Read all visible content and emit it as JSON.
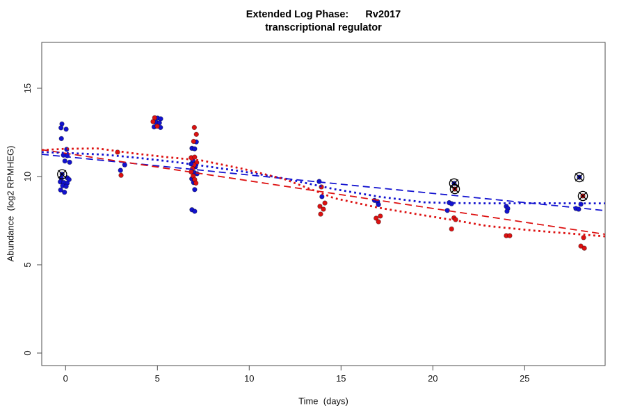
{
  "chart_data": {
    "type": "scatter",
    "title_line1": "Extended Log Phase:      Rv2017",
    "title_line2": "transcriptional regulator",
    "xlabel": "Time  (days)",
    "ylabel": "Abundance  (log2 RPMHEG)",
    "x_ticks": [
      0,
      5,
      10,
      15,
      20,
      25
    ],
    "y_ticks": [
      0,
      5,
      10,
      15
    ],
    "xlim": [
      -1.3,
      29.4
    ],
    "ylim": [
      -0.7,
      17.6
    ],
    "grid": false,
    "legend": "none",
    "colors": {
      "red": "#dd1111",
      "blue": "#1212cf",
      "axis": "#4d4d4d",
      "marker_ring": "#000000"
    },
    "series": [
      {
        "name": "blue-points",
        "color": "#1212cf",
        "points": [
          [
            -0.2,
            12.98
          ],
          [
            -0.25,
            12.76
          ],
          [
            0.03,
            12.68
          ],
          [
            -0.23,
            12.15
          ],
          [
            0.06,
            11.54
          ],
          [
            -0.12,
            11.21
          ],
          [
            0.09,
            11.18
          ],
          [
            -0.04,
            10.88
          ],
          [
            0.22,
            10.81
          ],
          [
            -0.19,
            10.13,
            1
          ],
          [
            0.09,
            9.93
          ],
          [
            -0.23,
            9.89
          ],
          [
            0.19,
            9.83
          ],
          [
            -0.29,
            9.7
          ],
          [
            -0.1,
            9.66
          ],
          [
            0.09,
            9.63
          ],
          [
            -0.16,
            9.48
          ],
          [
            0.03,
            9.44
          ],
          [
            -0.27,
            9.24
          ],
          [
            -0.06,
            9.11
          ],
          [
            3.22,
            10.66
          ],
          [
            2.99,
            10.35
          ],
          [
            5.01,
            13.31
          ],
          [
            5.18,
            13.27
          ],
          [
            4.92,
            13.07
          ],
          [
            5.11,
            13.04
          ],
          [
            4.82,
            12.81
          ],
          [
            5.17,
            12.78
          ],
          [
            7.12,
            11.96
          ],
          [
            6.88,
            11.6
          ],
          [
            7.03,
            11.57
          ],
          [
            6.93,
            10.88
          ],
          [
            6.84,
            10.71
          ],
          [
            7.07,
            10.55
          ],
          [
            7.01,
            10.22
          ],
          [
            7.16,
            10.16
          ],
          [
            6.87,
            9.87
          ],
          [
            6.97,
            9.66
          ],
          [
            7.03,
            9.26
          ],
          [
            6.88,
            8.12
          ],
          [
            7.03,
            8.03
          ],
          [
            13.81,
            9.72
          ],
          [
            13.96,
            8.86
          ],
          [
            16.82,
            8.65
          ],
          [
            16.99,
            8.58
          ],
          [
            17.04,
            8.41
          ],
          [
            21.16,
            9.61,
            1
          ],
          [
            20.89,
            8.52
          ],
          [
            21.02,
            8.46
          ],
          [
            20.79,
            8.08
          ],
          [
            24.0,
            8.31
          ],
          [
            24.08,
            8.19
          ],
          [
            24.04,
            8.03
          ],
          [
            27.98,
            9.96,
            1
          ],
          [
            28.06,
            8.43
          ],
          [
            27.79,
            8.19
          ],
          [
            27.94,
            8.15
          ]
        ]
      },
      {
        "name": "red-points",
        "color": "#dd1111",
        "points": [
          [
            2.83,
            11.38
          ],
          [
            3.02,
            10.07
          ],
          [
            4.85,
            13.33
          ],
          [
            4.76,
            13.11
          ],
          [
            4.99,
            12.85
          ],
          [
            7.01,
            12.78
          ],
          [
            7.12,
            12.39
          ],
          [
            6.97,
            11.99
          ],
          [
            6.84,
            11.07
          ],
          [
            7.03,
            11.1
          ],
          [
            7.14,
            10.79
          ],
          [
            7.0,
            10.66
          ],
          [
            6.91,
            10.45
          ],
          [
            6.84,
            10.26
          ],
          [
            6.95,
            10.03
          ],
          [
            7.03,
            9.83
          ],
          [
            7.1,
            9.63
          ],
          [
            13.93,
            9.41
          ],
          [
            14.12,
            8.5
          ],
          [
            13.85,
            8.31
          ],
          [
            14.04,
            8.15
          ],
          [
            13.89,
            7.87
          ],
          [
            17.14,
            7.76
          ],
          [
            16.91,
            7.64
          ],
          [
            17.04,
            7.44
          ],
          [
            21.2,
            9.29,
            1
          ],
          [
            21.15,
            7.66
          ],
          [
            21.24,
            7.56
          ],
          [
            21.02,
            7.03
          ],
          [
            24.0,
            6.65
          ],
          [
            24.19,
            6.65
          ],
          [
            28.17,
            8.9,
            1
          ],
          [
            28.21,
            6.54
          ],
          [
            28.06,
            6.06
          ],
          [
            28.25,
            5.94
          ]
        ]
      }
    ],
    "lines": [
      {
        "name": "blue-linear-fit",
        "color": "#1212cf",
        "style": "dashed",
        "points": [
          [
            -1.3,
            11.26
          ],
          [
            29.38,
            8.07
          ]
        ]
      },
      {
        "name": "red-linear-fit",
        "color": "#dd1111",
        "style": "dashed",
        "points": [
          [
            -1.3,
            11.52
          ],
          [
            29.38,
            6.73
          ]
        ]
      },
      {
        "name": "blue-smooth-fit",
        "color": "#1212cf",
        "style": "dotted",
        "points": [
          [
            -1.3,
            11.38
          ],
          [
            0.0,
            11.34
          ],
          [
            2.11,
            11.24
          ],
          [
            3.81,
            11.07
          ],
          [
            5.9,
            10.83
          ],
          [
            7.41,
            10.62
          ],
          [
            9.69,
            10.28
          ],
          [
            11.96,
            9.88
          ],
          [
            14.61,
            9.29
          ],
          [
            17.07,
            8.86
          ],
          [
            19.53,
            8.54
          ],
          [
            21.05,
            8.5
          ],
          [
            22.94,
            8.48
          ],
          [
            25.59,
            8.49
          ],
          [
            28.25,
            8.48
          ],
          [
            29.38,
            8.48
          ]
        ]
      },
      {
        "name": "red-smooth-fit",
        "color": "#dd1111",
        "style": "dotted",
        "points": [
          [
            -1.3,
            11.5
          ],
          [
            -0.01,
            11.57
          ],
          [
            1.73,
            11.59
          ],
          [
            3.81,
            11.3
          ],
          [
            5.52,
            11.1
          ],
          [
            7.41,
            10.91
          ],
          [
            9.69,
            10.43
          ],
          [
            11.96,
            9.84
          ],
          [
            14.61,
            8.78
          ],
          [
            17.07,
            8.23
          ],
          [
            19.53,
            7.8
          ],
          [
            21.43,
            7.48
          ],
          [
            22.94,
            7.2
          ],
          [
            25.59,
            6.93
          ],
          [
            27.49,
            6.77
          ],
          [
            29.38,
            6.61
          ]
        ]
      }
    ]
  }
}
